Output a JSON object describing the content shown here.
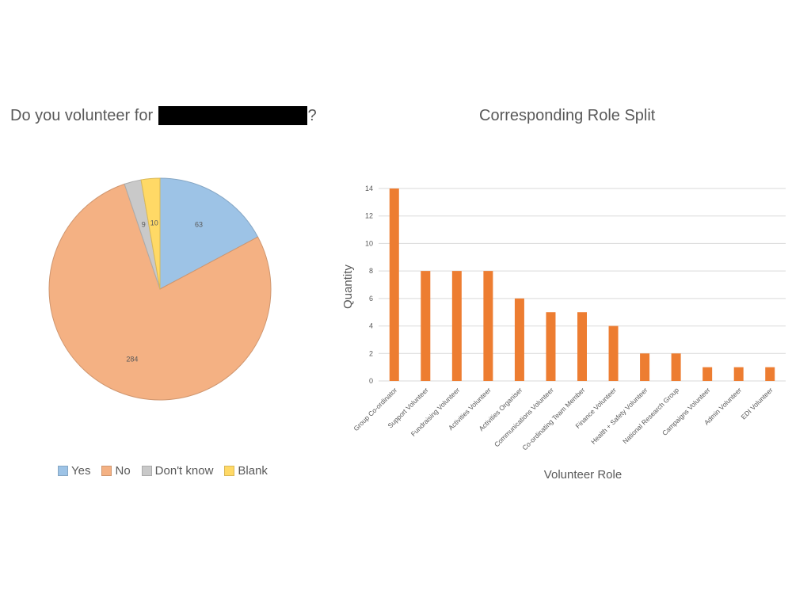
{
  "chart_data": [
    {
      "type": "pie",
      "title_prefix": "Do you volunteer for",
      "title_suffix": "?",
      "title_redacted": true,
      "categories": [
        "Yes",
        "No",
        "Don't know",
        "Blank"
      ],
      "values": [
        63,
        284,
        9,
        10
      ],
      "colors": [
        "#9dc3e6",
        "#f4b183",
        "#c9c9c9",
        "#ffd966"
      ],
      "legend_position": "bottom"
    },
    {
      "type": "bar",
      "title": "Corresponding Role Split",
      "xlabel": "Volunteer Role",
      "ylabel": "Quantity",
      "categories": [
        "Group Co-ordinator",
        "Support Volunteer",
        "Fundraising Volunteer",
        "Activities Volunteer",
        "Activities Organiser",
        "Communications Volunteer",
        "Co-ordinating Team Member",
        "Finance Volunteer",
        "Health + Safety Volunteer",
        "National Research Group",
        "Campaigns Volunteer",
        "Admin Volunteer",
        "EDI Volunteer"
      ],
      "values": [
        14,
        8,
        8,
        8,
        6,
        5,
        5,
        4,
        2,
        2,
        1,
        1,
        1
      ],
      "ylim": [
        0,
        14
      ],
      "yticks": [
        0,
        2,
        4,
        6,
        8,
        10,
        12,
        14
      ],
      "grid": true,
      "color": "#ed7d31"
    }
  ]
}
